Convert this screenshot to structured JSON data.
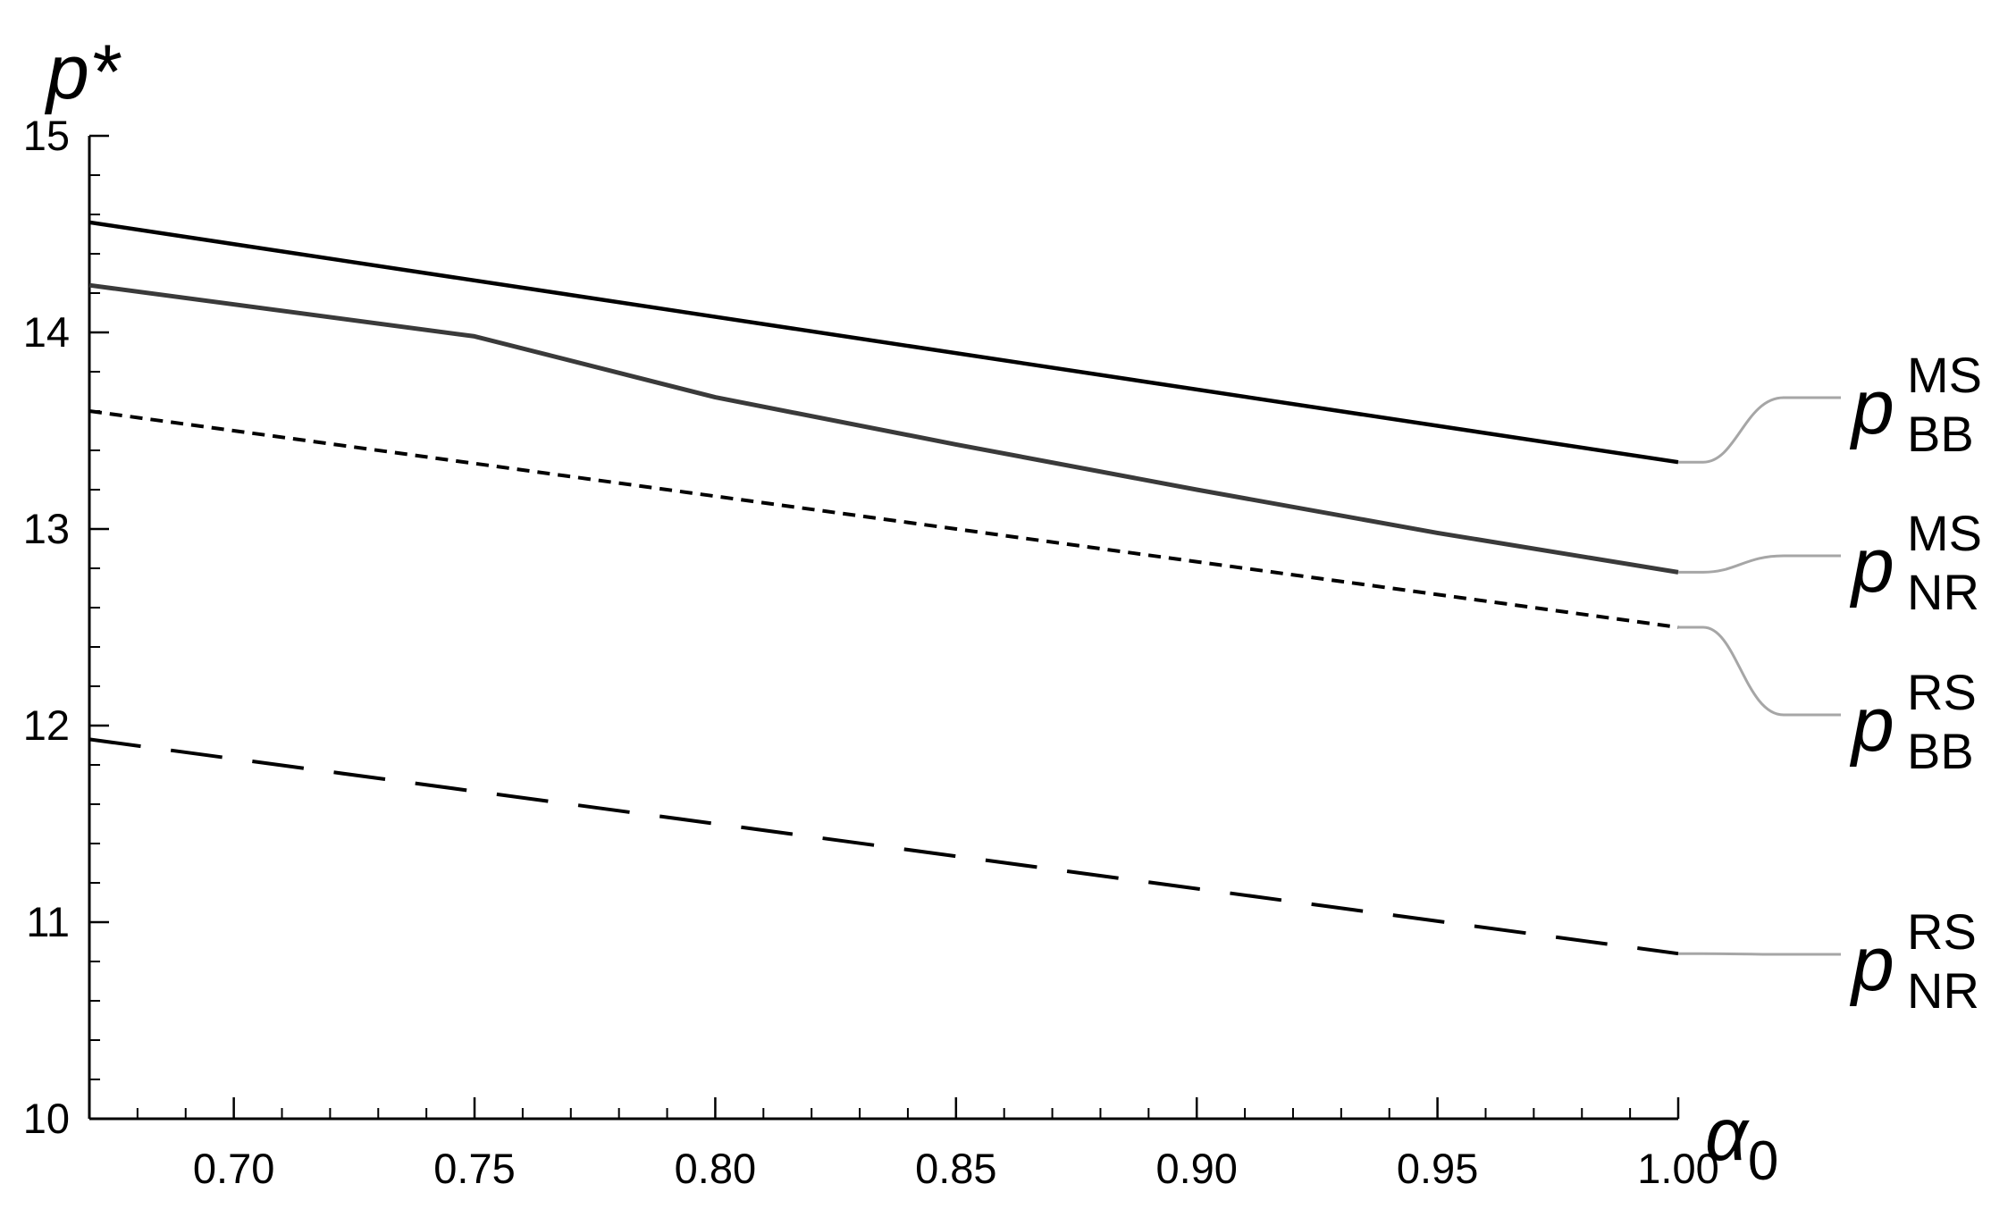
{
  "chart_data": {
    "type": "line",
    "x_axis": {
      "label": "α",
      "label_subscript": "0",
      "range": [
        0.67,
        1.0
      ],
      "tick_labels": [
        "0.70",
        "0.75",
        "0.80",
        "0.85",
        "0.90",
        "0.95",
        "1.00"
      ],
      "tick_values": [
        0.7,
        0.75,
        0.8,
        0.85,
        0.9,
        0.95,
        1.0
      ]
    },
    "y_axis": {
      "label": "p*",
      "range": [
        10,
        15
      ],
      "tick_labels": [
        "10",
        "11",
        "12",
        "13",
        "14",
        "15"
      ],
      "tick_values": [
        10,
        11,
        12,
        13,
        14,
        15
      ]
    },
    "grid": false,
    "legend_placement": "right, inline labels connected by leader lines",
    "series": [
      {
        "name": "p",
        "label_superscript": "MS",
        "label_subscript": "BB",
        "style": "solid",
        "x": [
          0.67,
          1.0
        ],
        "y": [
          14.56,
          13.34
        ]
      },
      {
        "name": "p",
        "label_superscript": "MS",
        "label_subscript": "NR",
        "style": "solid-gray",
        "x": [
          0.67,
          0.75,
          0.8,
          0.85,
          0.9,
          0.95,
          1.0
        ],
        "y": [
          14.24,
          13.98,
          13.67,
          13.43,
          13.2,
          12.98,
          12.78
        ]
      },
      {
        "name": "p",
        "label_superscript": "RS",
        "label_subscript": "BB",
        "style": "short-dash",
        "x": [
          0.67,
          1.0
        ],
        "y": [
          13.6,
          12.5
        ]
      },
      {
        "name": "p",
        "label_superscript": "RS",
        "label_subscript": "NR",
        "style": "long-dash",
        "x": [
          0.67,
          1.0
        ],
        "y": [
          11.93,
          10.84
        ]
      }
    ],
    "colors": {
      "line": "#000000",
      "leader": "#a6a6a6",
      "axis": "#000000"
    }
  }
}
